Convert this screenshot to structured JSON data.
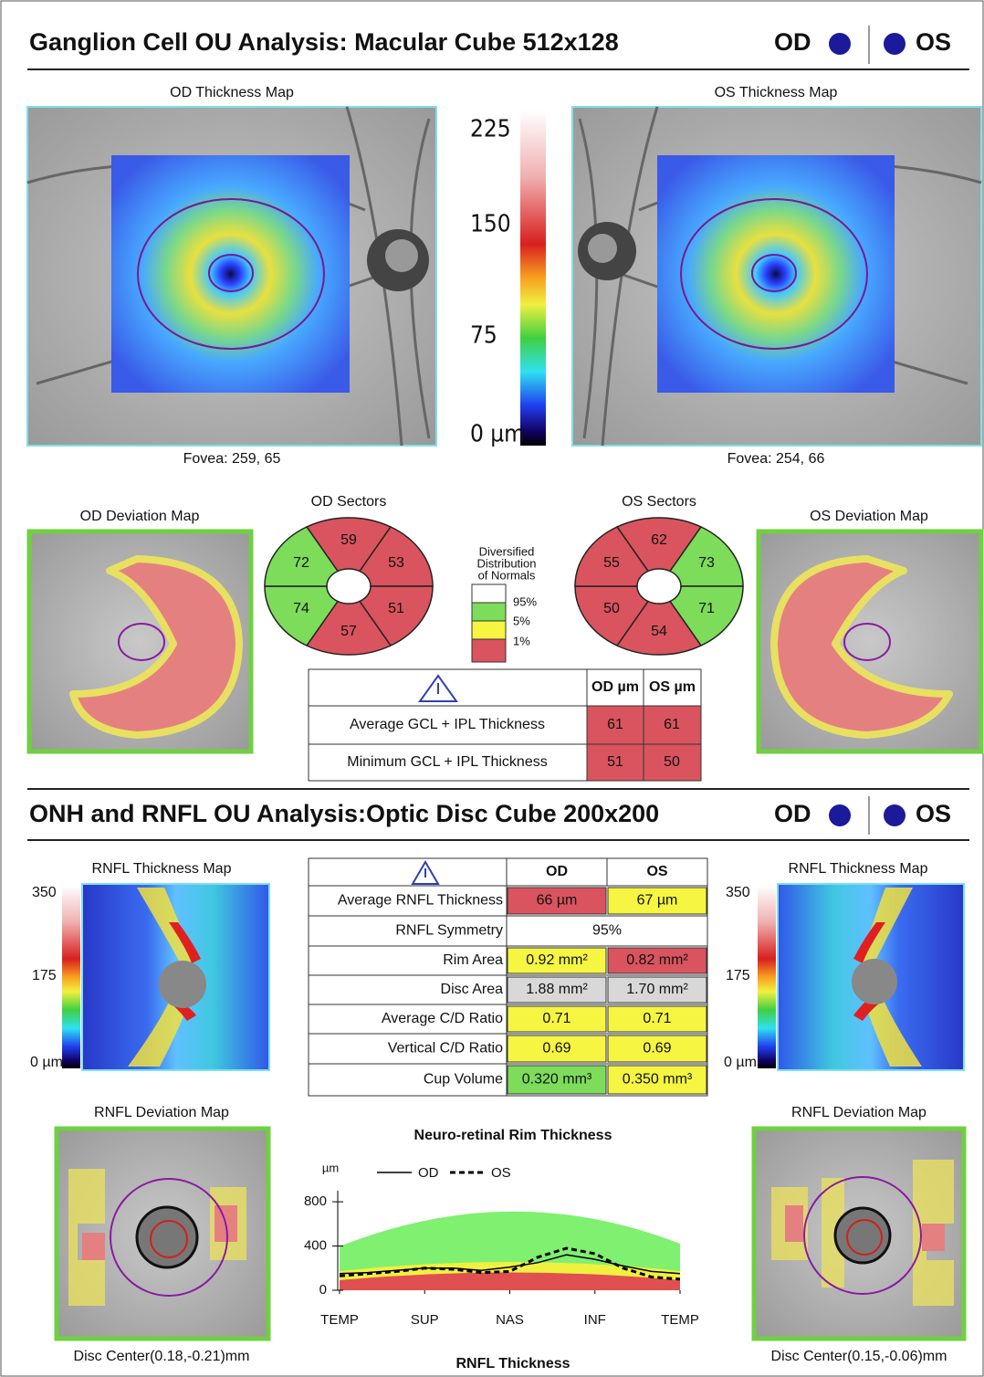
{
  "report": {
    "gcl": {
      "title": "Ganglion Cell OU Analysis: Macular Cube 512x128",
      "od": "OD",
      "os": "OS",
      "od_map": {
        "label": "OD Thickness Map",
        "fovea": "Fovea: 259, 65"
      },
      "os_map": {
        "label": "OS Thickness Map",
        "fovea": "Fovea: 254, 66"
      },
      "scale": [
        "225",
        "150",
        "75",
        "0 µm"
      ],
      "od_deviation": "OD Deviation Map",
      "os_deviation": "OS Deviation Map",
      "od_sectors": {
        "title": "OD Sectors",
        "values": [
          59,
          53,
          51,
          57,
          74,
          72
        ],
        "colors": [
          "#d9545e",
          "#d9545e",
          "#d9545e",
          "#d9545e",
          "#7ddc5a",
          "#7ddc5a"
        ]
      },
      "os_sectors": {
        "title": "OS Sectors",
        "values": [
          62,
          73,
          71,
          54,
          50,
          55
        ],
        "colors": [
          "#d9545e",
          "#7ddc5a",
          "#7ddc5a",
          "#d9545e",
          "#d9545e",
          "#d9545e"
        ]
      },
      "normals": {
        "title": [
          "Diversified",
          "Distribution",
          "of Normals"
        ],
        "levels": [
          "95%",
          "5%",
          "1%"
        ]
      },
      "table": {
        "columns": [
          "OD µm",
          "OS µm"
        ],
        "rows": [
          {
            "label": "Average GCL + IPL Thickness",
            "od": "61",
            "os": "61",
            "od_color": "#d9545e",
            "os_color": "#d9545e"
          },
          {
            "label": "Minimum GCL + IPL Thickness",
            "od": "51",
            "os": "50",
            "od_color": "#d9545e",
            "os_color": "#d9545e"
          }
        ]
      }
    },
    "onh": {
      "title": "ONH and RNFL OU Analysis:Optic Disc Cube 200x200",
      "od": "OD",
      "os": "OS",
      "od_map_label": "RNFL Thickness Map",
      "os_map_label": "RNFL Thickness Map",
      "scale": [
        "350",
        "175",
        "0 µm"
      ],
      "table": {
        "columns": [
          "OD",
          "OS"
        ],
        "rows": [
          {
            "label": "Average RNFL Thickness",
            "od": "66 µm",
            "os": "67 µm",
            "od_color": "#d9545e",
            "os_color": "#f5f542"
          },
          {
            "label": "RNFL Symmetry",
            "value": "95%"
          },
          {
            "label": "Rim Area",
            "od": "0.92 mm²",
            "os": "0.82 mm²",
            "od_color": "#f5f542",
            "os_color": "#d9545e"
          },
          {
            "label": "Disc Area",
            "od": "1.88 mm²",
            "os": "1.70 mm²",
            "od_color": "#d8d8d8",
            "os_color": "#d8d8d8"
          },
          {
            "label": "Average C/D Ratio",
            "od": "0.71",
            "os": "0.71",
            "od_color": "#f5f542",
            "os_color": "#f5f542"
          },
          {
            "label": "Vertical C/D Ratio",
            "od": "0.69",
            "os": "0.69",
            "od_color": "#f5f542",
            "os_color": "#f5f542"
          },
          {
            "label": "Cup Volume",
            "od": "0.320 mm³",
            "os": "0.350 mm³",
            "od_color": "#7ddc5a",
            "os_color": "#f5f542"
          }
        ]
      },
      "od_deviation": "RNFL Deviation Map",
      "os_deviation": "RNFL Deviation Map",
      "od_disc_center": "Disc Center(0.18,-0.21)mm",
      "os_disc_center": "Disc Center(0.15,-0.06)mm"
    }
  },
  "chart_data": {
    "type": "line",
    "title": "Neuro-retinal Rim Thickness",
    "y_label": "µm",
    "x_label": "RNFL Thickness",
    "x": [
      0,
      30,
      60,
      90,
      120,
      150,
      180,
      210,
      240,
      270,
      300,
      330,
      360
    ],
    "xlim": [
      0,
      360
    ],
    "xticks": [
      {
        "value": 0,
        "label": "TEMP"
      },
      {
        "value": 90,
        "label": "SUP"
      },
      {
        "value": 180,
        "label": "NAS"
      },
      {
        "value": 270,
        "label": "INF"
      },
      {
        "value": 360,
        "label": "TEMP"
      }
    ],
    "ylim": [
      0,
      900
    ],
    "yticks": [
      0,
      400,
      800
    ],
    "series": [
      {
        "name": "OD",
        "color": "#000000",
        "line_style": "solid",
        "values": [
          150,
          160,
          180,
          200,
          200,
          180,
          210,
          250,
          320,
          280,
          220,
          170,
          150
        ]
      },
      {
        "name": "OS",
        "color": "#000000",
        "line_style": "dashed",
        "values": [
          130,
          150,
          170,
          200,
          190,
          160,
          170,
          300,
          380,
          330,
          200,
          120,
          100
        ]
      }
    ]
  }
}
